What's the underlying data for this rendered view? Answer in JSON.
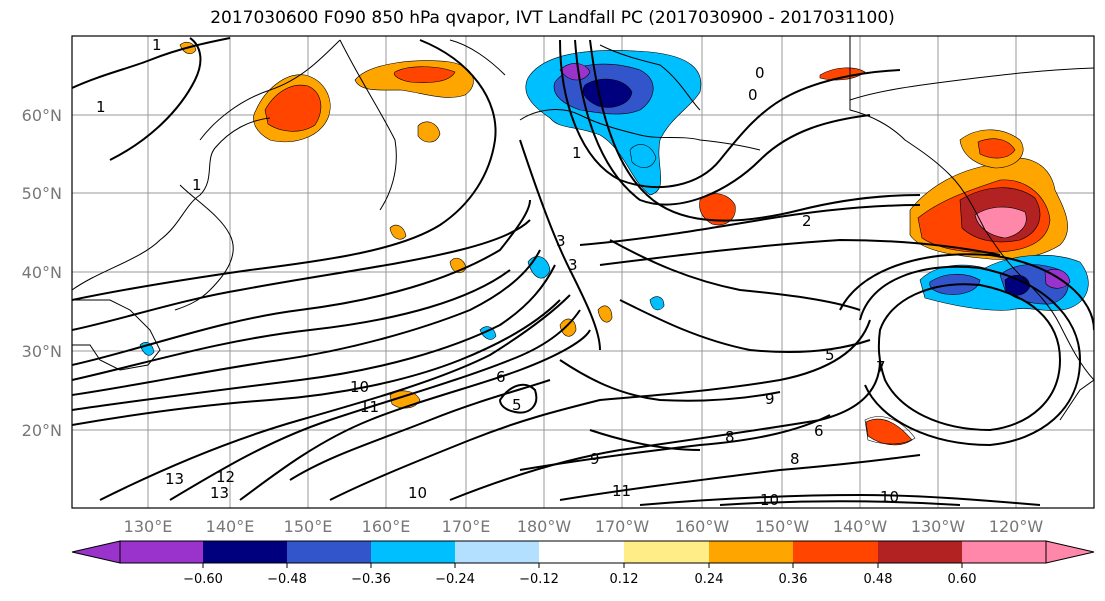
{
  "title": "2017030600 F090 850 hPa qvapor, IVT Landfall PC (2017030900 - 2017031100)",
  "map": {
    "lat_labels": [
      "60°N",
      "50°N",
      "40°N",
      "30°N",
      "20°N"
    ],
    "lon_labels": [
      "130°E",
      "140°E",
      "150°E",
      "160°E",
      "170°E",
      "180°W",
      "170°W",
      "160°W",
      "150°W",
      "140°W",
      "130°W",
      "120°W"
    ],
    "contour_labels": [
      "1",
      "1",
      "1",
      "0",
      "0",
      "1",
      "2",
      "3",
      "3",
      "5",
      "5",
      "6",
      "6",
      "7",
      "8",
      "8",
      "9",
      "9",
      "10",
      "10",
      "10",
      "10",
      "11",
      "11",
      "12",
      "13",
      "13"
    ]
  },
  "colorbar": {
    "ticks": [
      "−0.60",
      "−0.48",
      "−0.36",
      "−0.24",
      "−0.12",
      "0.12",
      "0.24",
      "0.36",
      "0.48",
      "0.60"
    ],
    "colors": [
      "#9933cc",
      "#00007f",
      "#3355cc",
      "#00bfff",
      "#b3e0ff",
      "#ffffff",
      "#ffee88",
      "#ffa500",
      "#ff4500",
      "#b22222",
      "#ff88aa",
      "#ff88aa"
    ]
  }
}
